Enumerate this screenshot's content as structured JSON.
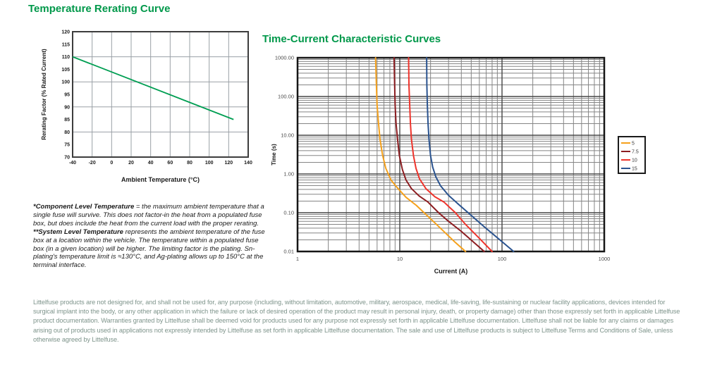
{
  "page": {
    "background": "#ffffff"
  },
  "chart_data": [
    {
      "type": "line",
      "title": "Temperature Rerating Curve",
      "xlabel": "Ambient Temperature (°C)",
      "ylabel": "Rerating Factor (% Rated Current)",
      "xlim": [
        -40,
        140
      ],
      "ylim": [
        70,
        120
      ],
      "x_ticks": [
        -40,
        -20,
        0,
        20,
        40,
        60,
        80,
        100,
        120,
        140
      ],
      "y_ticks": [
        70,
        75,
        80,
        85,
        90,
        95,
        100,
        105,
        110,
        115,
        120
      ],
      "grid": {
        "x_step": 20,
        "y_step": 10,
        "minor_color": "#9aa0a6",
        "border_color": "#3d3d3d"
      },
      "legend": null,
      "series": [
        {
          "name": "rerating-curve",
          "color": "#009E52",
          "points": [
            [
              -40,
              110
            ],
            [
              125,
              85
            ]
          ]
        }
      ]
    },
    {
      "type": "line",
      "title": "Time-Current Characteristic Curves",
      "xlabel": "Current (A)",
      "ylabel": "Time (s)",
      "x_scale": "log",
      "y_scale": "log",
      "xlim": [
        1,
        1000
      ],
      "ylim": [
        0.01,
        1000
      ],
      "x_tick_labels": [
        "1",
        "10",
        "100",
        "1000"
      ],
      "x_tick_values": [
        1,
        10,
        100,
        1000
      ],
      "y_tick_labels": [
        "1000.00",
        "100.00",
        "10.00",
        "1.00",
        "0.10",
        "0.01"
      ],
      "y_tick_values": [
        1000,
        100,
        10,
        1,
        0.1,
        0.01
      ],
      "grid": {
        "minor_color": "#858585",
        "major_color": "#454545",
        "border_color": "#161616"
      },
      "legend": {
        "position": "right",
        "entries": [
          "5",
          "7.5",
          "10",
          "15"
        ]
      },
      "series": [
        {
          "name": "5",
          "color": "#F5A11C",
          "points": [
            [
              5.8,
              1000
            ],
            [
              5.9,
              200
            ],
            [
              6.0,
              60
            ],
            [
              6.2,
              20
            ],
            [
              6.4,
              8
            ],
            [
              6.8,
              3
            ],
            [
              7.3,
              1.4
            ],
            [
              8.2,
              0.7
            ],
            [
              9.4,
              0.45
            ],
            [
              11.5,
              0.25
            ],
            [
              14.5,
              0.155
            ],
            [
              17.3,
              0.1
            ],
            [
              22,
              0.055
            ],
            [
              28,
              0.03
            ],
            [
              35,
              0.017
            ],
            [
              44,
              0.01
            ]
          ]
        },
        {
          "name": "7.5",
          "color": "#8C1D21",
          "points": [
            [
              8.8,
              1000
            ],
            [
              8.9,
              200
            ],
            [
              9.0,
              60
            ],
            [
              9.2,
              20
            ],
            [
              9.5,
              8
            ],
            [
              9.9,
              3
            ],
            [
              10.6,
              1.3
            ],
            [
              11.5,
              0.7
            ],
            [
              13,
              0.42
            ],
            [
              15.5,
              0.27
            ],
            [
              18.8,
              0.19
            ],
            [
              24,
              0.1
            ],
            [
              30,
              0.06
            ],
            [
              40,
              0.033
            ],
            [
              52,
              0.018
            ],
            [
              67,
              0.01
            ]
          ]
        },
        {
          "name": "10",
          "color": "#EE342C",
          "points": [
            [
              12.2,
              1000
            ],
            [
              12.3,
              200
            ],
            [
              12.5,
              60
            ],
            [
              12.7,
              20
            ],
            [
              13.0,
              8
            ],
            [
              13.6,
              3
            ],
            [
              14.4,
              1.4
            ],
            [
              15.6,
              0.75
            ],
            [
              18,
              0.42
            ],
            [
              22,
              0.26
            ],
            [
              27,
              0.19
            ],
            [
              35,
              0.1
            ],
            [
              44,
              0.05
            ],
            [
              62,
              0.02
            ],
            [
              80,
              0.01
            ]
          ]
        },
        {
          "name": "15",
          "color": "#2A538F",
          "points": [
            [
              18.3,
              1000
            ],
            [
              18.4,
              200
            ],
            [
              18.6,
              60
            ],
            [
              18.9,
              20
            ],
            [
              19.3,
              8
            ],
            [
              20,
              3
            ],
            [
              21,
              1.5
            ],
            [
              22.5,
              0.85
            ],
            [
              25,
              0.5
            ],
            [
              30,
              0.28
            ],
            [
              38,
              0.16
            ],
            [
              50,
              0.085
            ],
            [
              68,
              0.042
            ],
            [
              95,
              0.02
            ],
            [
              130,
              0.01
            ]
          ]
        }
      ]
    }
  ],
  "notes": {
    "component_title": "*Component Level Temperature",
    "component_body": " = the maximum ambient temperature that a single fuse will survive. This does not factor-in the heat from a populated fuse box, but does include the heat from the current load with the proper rerating.",
    "system_title": "**System Level Temperature",
    "system_body": " represents the ambient temperature of the fuse box at a location within the vehicle. The temperature within a populated fuse box (in a given location) will be higher. The limiting factor is the plating. Sn-plating's temperature limit is ≈130°C, and Ag-plating allows up to 150°C at the terminal interface."
  },
  "disclaimer": "Littelfuse products are not designed for, and shall not be used for, any purpose (including, without limitation, automotive, military, aerospace, medical, life-saving, life-sustaining or nuclear facility applications, devices intended for surgical implant into the body, or any other application in which the failure or lack of desired operation of the product may result in personal injury, death, or property damage) other than those expressly set forth in applicable Littelfuse product documentation.  Warranties granted by Littelfuse shall be deemed void for products used for any purpose not expressly set forth in applicable Littelfuse documentation.  Littelfuse shall not be liable for any claims or damages arising out of products used in applications not expressly intended by Littelfuse as set forth in applicable Littelfuse documentation.  The sale and use of Littelfuse products is subject to Littelfuse Terms and Conditions of Sale, unless otherwise agreed by Littelfuse.",
  "colors": {
    "title_green": "#00984A",
    "disclaimer_gray_green": "#7E948B"
  }
}
